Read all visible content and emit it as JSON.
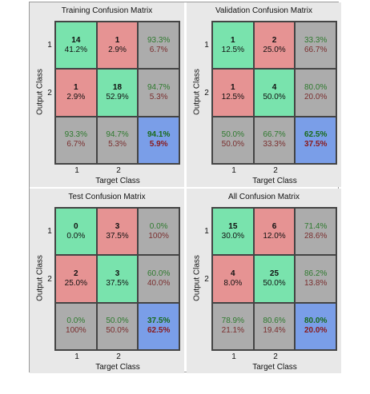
{
  "axes": {
    "ylabel": "Output Class",
    "xlabel": "Target Class",
    "ticks": [
      "1",
      "2"
    ]
  },
  "panels": [
    {
      "title": "Training Confusion Matrix",
      "cells": [
        [
          {
            "l1": "14",
            "l2": "41.2%"
          },
          {
            "l1": "1",
            "l2": "2.9%"
          },
          {
            "l1": "93.3%",
            "l2": "6.7%"
          }
        ],
        [
          {
            "l1": "1",
            "l2": "2.9%"
          },
          {
            "l1": "18",
            "l2": "52.9%"
          },
          {
            "l1": "94.7%",
            "l2": "5.3%"
          }
        ],
        [
          {
            "l1": "93.3%",
            "l2": "6.7%"
          },
          {
            "l1": "94.7%",
            "l2": "5.3%"
          },
          {
            "l1": "94.1%",
            "l2": "5.9%"
          }
        ]
      ]
    },
    {
      "title": "Validation Confusion Matrix",
      "cells": [
        [
          {
            "l1": "1",
            "l2": "12.5%"
          },
          {
            "l1": "2",
            "l2": "25.0%"
          },
          {
            "l1": "33.3%",
            "l2": "66.7%"
          }
        ],
        [
          {
            "l1": "1",
            "l2": "12.5%"
          },
          {
            "l1": "4",
            "l2": "50.0%"
          },
          {
            "l1": "80.0%",
            "l2": "20.0%"
          }
        ],
        [
          {
            "l1": "50.0%",
            "l2": "50.0%"
          },
          {
            "l1": "66.7%",
            "l2": "33.3%"
          },
          {
            "l1": "62.5%",
            "l2": "37.5%"
          }
        ]
      ]
    },
    {
      "title": "Test Confusion Matrix",
      "cells": [
        [
          {
            "l1": "0",
            "l2": "0.0%"
          },
          {
            "l1": "3",
            "l2": "37.5%"
          },
          {
            "l1": "0.0%",
            "l2": "100%"
          }
        ],
        [
          {
            "l1": "2",
            "l2": "25.0%"
          },
          {
            "l1": "3",
            "l2": "37.5%"
          },
          {
            "l1": "60.0%",
            "l2": "40.0%"
          }
        ],
        [
          {
            "l1": "0.0%",
            "l2": "100%"
          },
          {
            "l1": "50.0%",
            "l2": "50.0%"
          },
          {
            "l1": "37.5%",
            "l2": "62.5%"
          }
        ]
      ]
    },
    {
      "title": "All Confusion Matrix",
      "cells": [
        [
          {
            "l1": "15",
            "l2": "30.0%"
          },
          {
            "l1": "6",
            "l2": "12.0%"
          },
          {
            "l1": "71.4%",
            "l2": "28.6%"
          }
        ],
        [
          {
            "l1": "4",
            "l2": "8.0%"
          },
          {
            "l1": "25",
            "l2": "50.0%"
          },
          {
            "l1": "86.2%",
            "l2": "13.8%"
          }
        ],
        [
          {
            "l1": "78.9%",
            "l2": "21.1%"
          },
          {
            "l1": "80.6%",
            "l2": "19.4%"
          },
          {
            "l1": "80.0%",
            "l2": "20.0%"
          }
        ]
      ]
    }
  ],
  "colors": {
    "correct": "#79e3ad",
    "incorrect": "#e69393",
    "summary": "#acacac",
    "overall": "#7a9ee8",
    "pct_good": "#2f7a2f",
    "pct_bad": "#7a2f2f"
  }
}
